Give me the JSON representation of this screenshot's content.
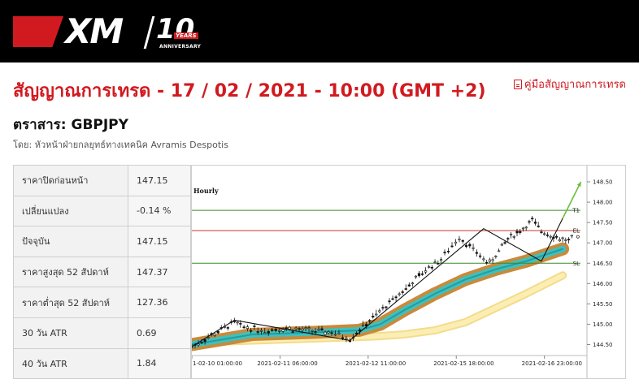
{
  "brand": {
    "logo_text": "XM",
    "anniversary_number": "10",
    "anniversary_years": "YEARS",
    "anniversary_label": "ANNIVERSARY"
  },
  "header": {
    "title": "สัญญาณการเทรด - 17 / 02 / 2021 - 10:00 (GMT +2)",
    "guide_link": "คู่มือสัญญาณการเทรด",
    "instrument": "ตราสาร: GBPJPY",
    "byline": "โดย: หัวหน้าฝ่ายกลยุทธ์ทางเทคนิค Avramis Despotis"
  },
  "stats": [
    {
      "label": "ราคาปิดก่อนหน้า",
      "value": "147.15"
    },
    {
      "label": "เปลี่ยนแปลง",
      "value": "-0.14 %"
    },
    {
      "label": "ปัจจุบัน",
      "value": "147.15"
    },
    {
      "label": "ราคาสูงสุด 52 สัปดาห์",
      "value": "147.37"
    },
    {
      "label": "ราคาต่ำสุด 52 สัปดาห์",
      "value": "127.36"
    },
    {
      "label": "30 วัน ATR",
      "value": "0.69"
    },
    {
      "label": "40 วัน ATR",
      "value": "1.84"
    }
  ],
  "chart_data": {
    "type": "line",
    "timeframe": "Hourly",
    "x_tick_labels": [
      "1-02-10 01:00:00",
      "2021-02-11 06:00:00",
      "2021-02-12 11:00:00",
      "2021-02-15 18:00:00",
      "2021-02-16 23:00:00"
    ],
    "x_ticks_at": [
      0,
      29,
      58,
      87,
      116
    ],
    "y_ticks": [
      144.5,
      145.0,
      145.5,
      146.0,
      146.5,
      147.0,
      147.5,
      148.0,
      148.5
    ],
    "y_tick_labels": [
      "144.50",
      "145.00",
      "145.50",
      "146.00",
      "146.50",
      "147.00",
      "147.50",
      "148.00",
      "148.50"
    ],
    "ylim": [
      144.35,
      148.7
    ],
    "xlim": [
      0,
      130
    ],
    "levels": [
      {
        "name": "T1",
        "value": 147.8,
        "color": "#3a8a2a"
      },
      {
        "name": "EL",
        "value": 147.3,
        "color": "#c0392b"
      },
      {
        "name": "SL",
        "value": 146.5,
        "color": "#3a8a2a"
      }
    ],
    "price_path": {
      "x": [
        0,
        14,
        16,
        24,
        30,
        46,
        52,
        78,
        82,
        88,
        96,
        98,
        101,
        104,
        109,
        112,
        115,
        118,
        121,
        124,
        126
      ],
      "y": [
        144.45,
        145.05,
        144.95,
        144.85,
        144.9,
        144.8,
        144.65,
        146.4,
        146.6,
        147.15,
        146.6,
        146.5,
        146.8,
        147.1,
        147.35,
        147.55,
        147.3,
        147.2,
        147.1,
        147.05,
        147.15
      ]
    },
    "zigzag": {
      "x": [
        0,
        14,
        52,
        96,
        115,
        122
      ],
      "y": [
        144.45,
        145.1,
        144.6,
        147.35,
        146.55,
        147.6
      ]
    },
    "ma_fast": {
      "x": [
        0,
        20,
        40,
        55,
        62,
        70,
        80,
        90,
        100,
        110,
        122
      ],
      "y": [
        144.5,
        144.75,
        144.8,
        144.85,
        145.0,
        145.35,
        145.75,
        146.1,
        146.35,
        146.55,
        146.85
      ]
    },
    "ma_slow": {
      "x": [
        0,
        20,
        40,
        60,
        70,
        80,
        90,
        100,
        110,
        122
      ],
      "y": [
        144.55,
        144.6,
        144.65,
        144.7,
        144.75,
        144.85,
        145.05,
        145.4,
        145.75,
        146.2
      ]
    },
    "forecast": {
      "x": [
        122,
        128
      ],
      "y": [
        147.6,
        148.5
      ],
      "color": "#6abf3a"
    },
    "last_price": 147.15
  }
}
